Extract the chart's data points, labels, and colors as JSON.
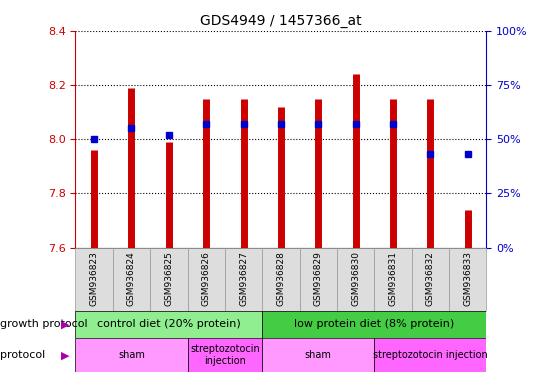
{
  "title": "GDS4949 / 1457366_at",
  "samples": [
    "GSM936823",
    "GSM936824",
    "GSM936825",
    "GSM936826",
    "GSM936827",
    "GSM936828",
    "GSM936829",
    "GSM936830",
    "GSM936831",
    "GSM936832",
    "GSM936833"
  ],
  "red_values": [
    7.96,
    8.19,
    7.99,
    8.15,
    8.15,
    8.12,
    8.15,
    8.24,
    8.15,
    8.15,
    7.74
  ],
  "blue_pct": [
    50,
    55,
    52,
    57,
    57,
    57,
    57,
    57,
    57,
    43,
    43
  ],
  "ylim_left": [
    7.6,
    8.4
  ],
  "ylim_right": [
    0,
    100
  ],
  "yticks_left": [
    7.6,
    7.8,
    8.0,
    8.2,
    8.4
  ],
  "yticks_right": [
    0,
    25,
    50,
    75,
    100
  ],
  "bar_color": "#CC0000",
  "marker_color": "#0000CC",
  "bar_bottom": 7.6,
  "growth_protocol_groups": [
    {
      "label": "control diet (20% protein)",
      "start": 0,
      "end": 4,
      "color": "#90EE90"
    },
    {
      "label": "low protein diet (8% protein)",
      "start": 5,
      "end": 10,
      "color": "#44CC44"
    }
  ],
  "protocol_groups": [
    {
      "label": "sham",
      "start": 0,
      "end": 2,
      "color": "#FF99FF"
    },
    {
      "label": "streptozotocin\ninjection",
      "start": 3,
      "end": 4,
      "color": "#FF66FF"
    },
    {
      "label": "sham",
      "start": 5,
      "end": 7,
      "color": "#FF99FF"
    },
    {
      "label": "streptozotocin injection",
      "start": 8,
      "end": 10,
      "color": "#FF66FF"
    }
  ],
  "left_axis_color": "#CC0000",
  "right_axis_color": "#0000CC",
  "tick_label_bg": "#DDDDDD"
}
